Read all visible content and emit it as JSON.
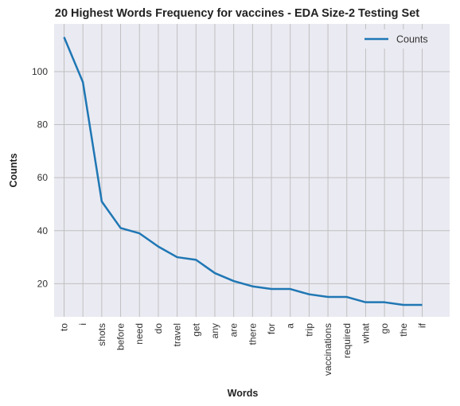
{
  "chart_data": {
    "type": "line",
    "title": "20 Highest Words Frequency for vaccines - EDA Size-2 Testing Set",
    "xlabel": "Words",
    "ylabel": "Counts",
    "categories": [
      "to",
      "i",
      "shots",
      "before",
      "need",
      "do",
      "travel",
      "get",
      "any",
      "are",
      "there",
      "for",
      "a",
      "trip",
      "vaccinations",
      "required",
      "what",
      "go",
      "the",
      "if"
    ],
    "series": [
      {
        "name": "Counts",
        "values": [
          113,
          96,
          51,
          41,
          39,
          34,
          30,
          29,
          24,
          21,
          19,
          18,
          18,
          16,
          15,
          15,
          13,
          13,
          12,
          12
        ]
      }
    ],
    "yticks": [
      20,
      40,
      60,
      80,
      100
    ],
    "ylim": [
      7.5,
      118
    ],
    "grid": true,
    "legend": "top-right",
    "colors": {
      "line": "#1f77b4",
      "plot_bg": "#eaeaf2",
      "grid": "#c0c0c0"
    }
  }
}
